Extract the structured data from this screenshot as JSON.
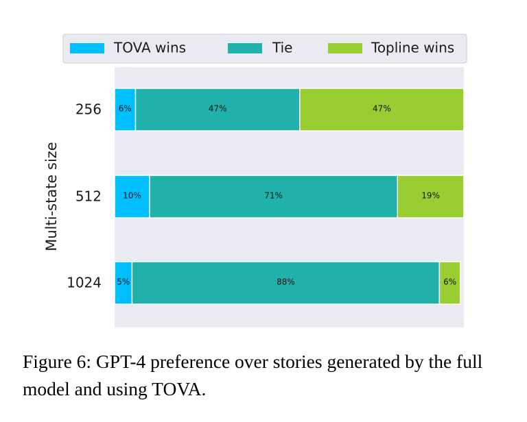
{
  "chart_data": {
    "type": "bar",
    "orientation": "horizontal",
    "stacked": true,
    "normalized": true,
    "categories": [
      "256",
      "512",
      "1024"
    ],
    "series": [
      {
        "name": "TOVA wins",
        "color": "#00bfff",
        "values": [
          6,
          10,
          5
        ],
        "labels": [
          "6%",
          "10%",
          "5%"
        ]
      },
      {
        "name": "Tie",
        "color": "#20b2aa",
        "values": [
          47,
          71,
          88
        ],
        "labels": [
          "47%",
          "71%",
          "88%"
        ]
      },
      {
        "name": "Topline wins",
        "color": "#9acd32",
        "values": [
          47,
          19,
          6
        ],
        "labels": [
          "47%",
          "19%",
          "6%"
        ]
      }
    ],
    "ylabel": "Multi-state size",
    "xlabel": "",
    "xlim": [
      0,
      100
    ],
    "grid": false,
    "background": "#eaeaf2",
    "legend": "top"
  },
  "caption": "Figure 6: GPT-4 preference over stories generated by the full model and using TOVA."
}
